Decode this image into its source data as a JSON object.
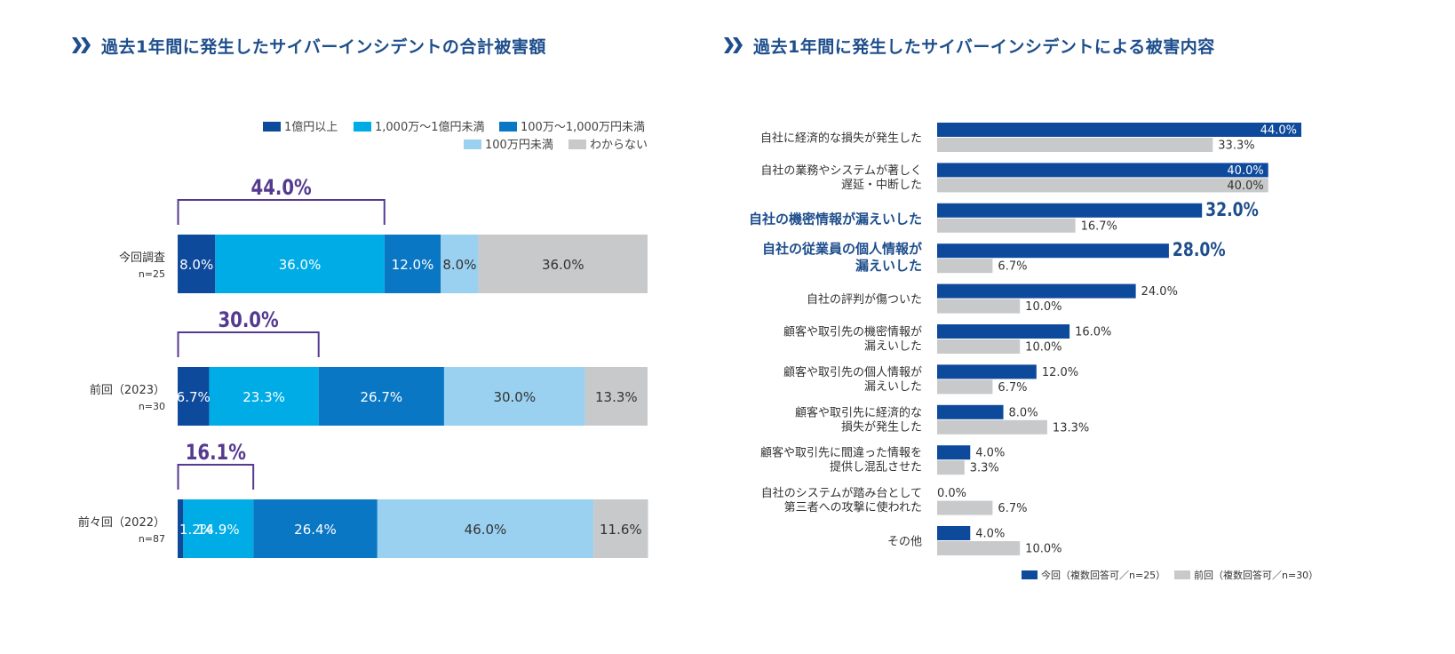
{
  "colors": {
    "dark_blue": "#0e4a9c",
    "cyan": "#00ace6",
    "mid_blue": "#0a77c4",
    "light_blue": "#9ad0f0",
    "gray": "#c8c9ca",
    "purple": "#553a8f",
    "heading": "#1e4e8c"
  },
  "left": {
    "title": "過去1年間に発生したサイバーインシデントの合計被害額",
    "legend": [
      "1億円以上",
      "1,000万〜1億円未満",
      "100万〜1,000万円未満",
      "100万円未満",
      "わからない"
    ]
  },
  "right": {
    "title": "過去1年間に発生したサイバーインシデントによる被害内容",
    "legend": [
      "今回（複数回答可／n=25）",
      "前回（複数回答可／n=30）"
    ]
  },
  "chart_data": [
    {
      "type": "bar",
      "orientation": "horizontal-stacked",
      "title": "過去1年間に発生したサイバーインシデントの合計被害額",
      "xlim": [
        0,
        100
      ],
      "series_names": [
        "1億円以上",
        "1,000万〜1億円未満",
        "100万〜1,000万円未満",
        "100万円未満",
        "わからない"
      ],
      "groups": [
        {
          "name": "今回調査",
          "n": "n=25",
          "values": [
            8.0,
            36.0,
            12.0,
            8.0,
            36.0
          ],
          "labels": [
            "8.0%",
            "36.0%",
            "12.0%",
            "8.0%",
            "36.0%"
          ],
          "bracket_value": 44.0,
          "bracket_label": "44.0%"
        },
        {
          "name": "前回（2023）",
          "n": "n=30",
          "values": [
            6.7,
            23.3,
            26.7,
            30.0,
            13.3
          ],
          "labels": [
            "6.7%",
            "23.3%",
            "26.7%",
            "30.0%",
            "13.3%"
          ],
          "bracket_value": 30.0,
          "bracket_label": "30.0%"
        },
        {
          "name": "前々回（2022）",
          "n": "n=87",
          "values": [
            1.2,
            14.9,
            26.4,
            46.0,
            11.6
          ],
          "labels": [
            "1.2%",
            "14.9%",
            "26.4%",
            "46.0%",
            "11.6%"
          ],
          "bracket_value": 16.1,
          "bracket_label": "16.1%"
        }
      ]
    },
    {
      "type": "bar",
      "orientation": "horizontal-grouped",
      "title": "過去1年間に発生したサイバーインシデントによる被害内容",
      "xlim": [
        0,
        50
      ],
      "series_names": [
        "今回（複数回答可／n=25）",
        "前回（複数回答可／n=30）"
      ],
      "categories": [
        {
          "label": [
            "自社に経済的な損失が発生した"
          ],
          "current": 44.0,
          "current_label": "44.0%",
          "previous": 33.3,
          "previous_label": "33.3%",
          "highlight": false
        },
        {
          "label": [
            "自社の業務やシステムが著しく",
            "遅延・中断した"
          ],
          "current": 40.0,
          "current_label": "40.0%",
          "previous": 40.0,
          "previous_label": "40.0%",
          "highlight": false
        },
        {
          "label": [
            "自社の機密情報が漏えいした"
          ],
          "current": 32.0,
          "current_label": "32.0%",
          "previous": 16.7,
          "previous_label": "16.7%",
          "highlight": true
        },
        {
          "label": [
            "自社の従業員の個人情報が",
            "漏えいした"
          ],
          "current": 28.0,
          "current_label": "28.0%",
          "previous": 6.7,
          "previous_label": "6.7%",
          "highlight": true
        },
        {
          "label": [
            "自社の評判が傷ついた"
          ],
          "current": 24.0,
          "current_label": "24.0%",
          "previous": 10.0,
          "previous_label": "10.0%",
          "highlight": false
        },
        {
          "label": [
            "顧客や取引先の機密情報が",
            "漏えいした"
          ],
          "current": 16.0,
          "current_label": "16.0%",
          "previous": 10.0,
          "previous_label": "10.0%",
          "highlight": false
        },
        {
          "label": [
            "顧客や取引先の個人情報が",
            "漏えいした"
          ],
          "current": 12.0,
          "current_label": "12.0%",
          "previous": 6.7,
          "previous_label": "6.7%",
          "highlight": false
        },
        {
          "label": [
            "顧客や取引先に経済的な",
            "損失が発生した"
          ],
          "current": 8.0,
          "current_label": "8.0%",
          "previous": 13.3,
          "previous_label": "13.3%",
          "highlight": false
        },
        {
          "label": [
            "顧客や取引先に間違った情報を",
            "提供し混乱させた"
          ],
          "current": 4.0,
          "current_label": "4.0%",
          "previous": 3.3,
          "previous_label": "3.3%",
          "highlight": false
        },
        {
          "label": [
            "自社のシステムが踏み台として",
            "第三者への攻撃に使われた"
          ],
          "current": 0.0,
          "current_label": "0.0%",
          "previous": 6.7,
          "previous_label": "6.7%",
          "highlight": false
        },
        {
          "label": [
            "その他"
          ],
          "current": 4.0,
          "current_label": "4.0%",
          "previous": 10.0,
          "previous_label": "10.0%",
          "highlight": false
        }
      ]
    }
  ]
}
